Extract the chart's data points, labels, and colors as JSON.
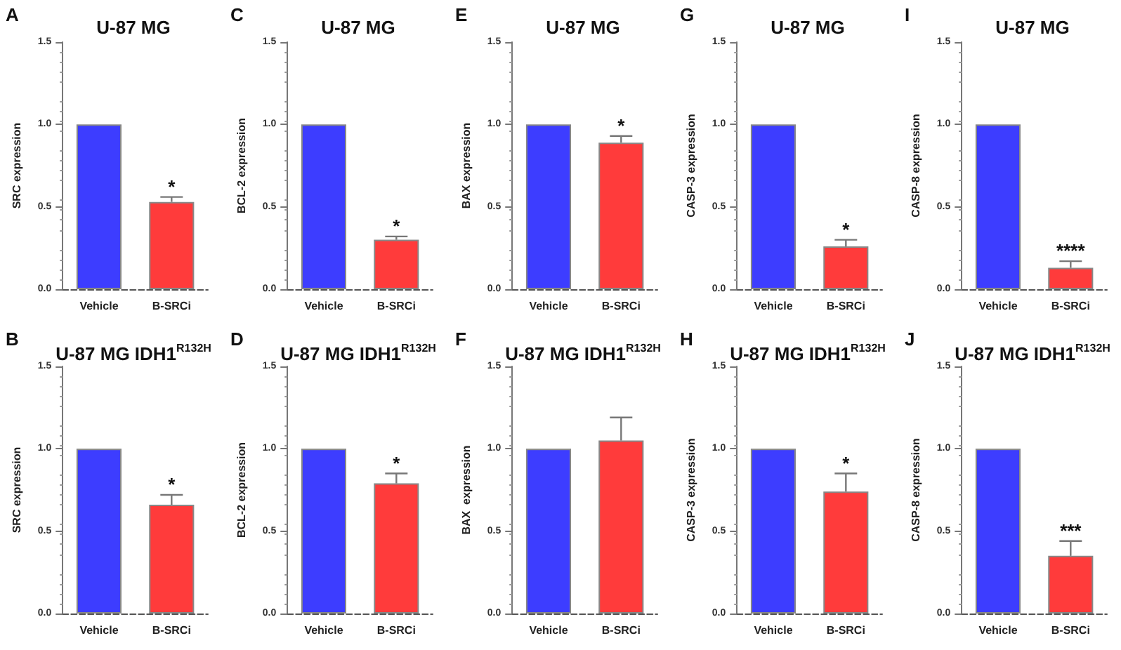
{
  "chart_data": [
    {
      "type": "bar",
      "title": "U-87 MG",
      "ylabel": "SRC expression",
      "categories": [
        "Vehicle",
        "B-SRCi"
      ],
      "values": [
        1.0,
        0.53
      ],
      "colors": [
        "#3d3dff",
        "#ff3b3b"
      ],
      "errors": [
        null,
        [
          0.53,
          0.56
        ]
      ],
      "ylim": [
        0,
        1.5
      ],
      "yticks": [
        {
          "value": 0,
          "label": "0.0"
        },
        {
          "value": 0.5,
          "label": "0.5"
        },
        {
          "value": 1,
          "label": "1.0"
        },
        {
          "value": 1.5,
          "label": "1.5"
        }
      ],
      "annotations": [
        "A",
        {
          "text": "*",
          "x": "B-SRCi",
          "y": 0.56
        }
      ]
    },
    {
      "type": "bar",
      "title": "U-87 MG",
      "ylabel": "BCL-2 expression",
      "categories": [
        "Vehicle",
        "B-SRCi"
      ],
      "values": [
        1.0,
        0.3
      ],
      "colors": [
        "#3d3dff",
        "#ff3b3b"
      ],
      "errors": [
        null,
        [
          0.3,
          0.32
        ]
      ],
      "ylim": [
        0,
        1.5
      ],
      "yticks": [
        {
          "value": 0,
          "label": "0.0"
        },
        {
          "value": 0.5,
          "label": "0.5"
        },
        {
          "value": 1,
          "label": "1.0"
        },
        {
          "value": 1.5,
          "label": "1.5"
        }
      ],
      "annotations": [
        "C",
        {
          "text": "*",
          "x": "B-SRCi",
          "y": 0.32
        }
      ]
    },
    {
      "type": "bar",
      "title": "U-87 MG",
      "ylabel": "BAX expression",
      "categories": [
        "Vehicle",
        "B-SRCi"
      ],
      "values": [
        1.0,
        0.89
      ],
      "colors": [
        "#3d3dff",
        "#ff3b3b"
      ],
      "errors": [
        null,
        [
          0.89,
          0.93
        ]
      ],
      "ylim": [
        0,
        1.5
      ],
      "yticks": [
        {
          "value": 0,
          "label": "0.0"
        },
        {
          "value": 0.5,
          "label": "0.5"
        },
        {
          "value": 1,
          "label": "1.0"
        },
        {
          "value": 1.5,
          "label": "1.5"
        }
      ],
      "annotations": [
        "E",
        {
          "text": "*",
          "x": "B-SRCi",
          "y": 0.93
        }
      ]
    },
    {
      "type": "bar",
      "title": "U-87 MG",
      "ylabel": "CASP-3 expression",
      "categories": [
        "Vehicle",
        "B-SRCi"
      ],
      "values": [
        1.0,
        0.26
      ],
      "colors": [
        "#3d3dff",
        "#ff3b3b"
      ],
      "errors": [
        null,
        [
          0.26,
          0.3
        ]
      ],
      "ylim": [
        0,
        1.5
      ],
      "yticks": [
        {
          "value": 0,
          "label": "0.0"
        },
        {
          "value": 0.5,
          "label": "0.5"
        },
        {
          "value": 1,
          "label": "1.0"
        },
        {
          "value": 1.5,
          "label": "1.5"
        }
      ],
      "annotations": [
        "G",
        {
          "text": "*",
          "x": "B-SRCi",
          "y": 0.3
        }
      ]
    },
    {
      "type": "bar",
      "title": "U-87 MG",
      "ylabel": "CASP-8 expression",
      "categories": [
        "Vehicle",
        "B-SRCi"
      ],
      "values": [
        1.0,
        0.13
      ],
      "colors": [
        "#3d3dff",
        "#ff3b3b"
      ],
      "errors": [
        null,
        [
          0.13,
          0.17
        ]
      ],
      "ylim": [
        0,
        1.5
      ],
      "yticks": [
        {
          "value": 0,
          "label": "0.0"
        },
        {
          "value": 0.5,
          "label": "0.5"
        },
        {
          "value": 1,
          "label": "1.0"
        },
        {
          "value": 1.5,
          "label": "1.5"
        }
      ],
      "annotations": [
        "I",
        {
          "text": "****",
          "x": "B-SRCi",
          "y": 0.17
        }
      ]
    },
    {
      "type": "bar",
      "title": "U-87 MG IDH1$^{R132H}$",
      "ylabel": "SRC expression",
      "categories": [
        "Vehicle",
        "B-SRCi"
      ],
      "values": [
        1.0,
        0.66
      ],
      "colors": [
        "#3d3dff",
        "#ff3b3b"
      ],
      "errors": [
        null,
        [
          0.66,
          0.72
        ]
      ],
      "ylim": [
        0,
        1.5
      ],
      "yticks": [
        {
          "value": 0,
          "label": "0.0"
        },
        {
          "value": 0.5,
          "label": "0.5"
        },
        {
          "value": 1,
          "label": "1.0"
        },
        {
          "value": 1.5,
          "label": "1.5"
        }
      ],
      "annotations": [
        "B",
        {
          "text": "*",
          "x": "B-SRCi",
          "y": 0.72
        }
      ]
    },
    {
      "type": "bar",
      "title": "U-87 MG IDH1$^{R132H}$",
      "ylabel": "BCL-2 expression",
      "categories": [
        "Vehicle",
        "B-SRCi"
      ],
      "values": [
        1.0,
        0.79
      ],
      "colors": [
        "#3d3dff",
        "#ff3b3b"
      ],
      "errors": [
        null,
        [
          0.79,
          0.85
        ]
      ],
      "ylim": [
        0,
        1.5
      ],
      "yticks": [
        {
          "value": 0,
          "label": "0.0"
        },
        {
          "value": 0.5,
          "label": "0.5"
        },
        {
          "value": 1,
          "label": "1.0"
        },
        {
          "value": 1.5,
          "label": "1.5"
        }
      ],
      "annotations": [
        "D",
        {
          "text": "*",
          "x": "B-SRCi",
          "y": 0.85
        }
      ]
    },
    {
      "type": "bar",
      "title": "U-87 MG IDH1$^{R132H}$",
      "ylabel": "BAX  expression",
      "categories": [
        "Vehicle",
        "B-SRCi"
      ],
      "values": [
        1.0,
        1.05
      ],
      "colors": [
        "#3d3dff",
        "#ff3b3b"
      ],
      "errors": [
        null,
        [
          1.05,
          1.19
        ]
      ],
      "ylim": [
        0,
        1.5
      ],
      "yticks": [
        {
          "value": 0,
          "label": "0.0"
        },
        {
          "value": 0.5,
          "label": "0.5"
        },
        {
          "value": 1,
          "label": "1.0"
        },
        {
          "value": 1.5,
          "label": "1.5"
        }
      ],
      "annotations": [
        "F"
      ]
    },
    {
      "type": "bar",
      "title": "U-87 MG IDH1$^{R132H}$",
      "ylabel": "CASP-3 expression",
      "categories": [
        "Vehicle",
        "B-SRCi"
      ],
      "values": [
        1.0,
        0.74
      ],
      "colors": [
        "#3d3dff",
        "#ff3b3b"
      ],
      "errors": [
        null,
        [
          0.74,
          0.85
        ]
      ],
      "ylim": [
        0,
        1.5
      ],
      "yticks": [
        {
          "value": 0,
          "label": "0.0"
        },
        {
          "value": 0.5,
          "label": "0.5"
        },
        {
          "value": 1,
          "label": "1.0"
        },
        {
          "value": 1.5,
          "label": "1.5"
        }
      ],
      "annotations": [
        "H",
        {
          "text": "*",
          "x": "B-SRCi",
          "y": 0.85
        }
      ]
    },
    {
      "type": "bar",
      "title": "U-87 MG IDH1$^{R132H}$",
      "ylabel": "CASP-8 expression",
      "categories": [
        "Vehicle",
        "B-SRCi"
      ],
      "values": [
        1.0,
        0.35
      ],
      "colors": [
        "#3d3dff",
        "#ff3b3b"
      ],
      "errors": [
        null,
        [
          0.35,
          0.44
        ]
      ],
      "ylim": [
        0,
        1.5
      ],
      "yticks": [
        {
          "value": 0,
          "label": "0.0"
        },
        {
          "value": 0.5,
          "label": "0.5"
        },
        {
          "value": 1,
          "label": "1.0"
        },
        {
          "value": 1.5,
          "label": "1.5"
        }
      ],
      "annotations": [
        "J",
        {
          "text": "***",
          "x": "B-SRCi",
          "y": 0.44
        }
      ]
    }
  ]
}
